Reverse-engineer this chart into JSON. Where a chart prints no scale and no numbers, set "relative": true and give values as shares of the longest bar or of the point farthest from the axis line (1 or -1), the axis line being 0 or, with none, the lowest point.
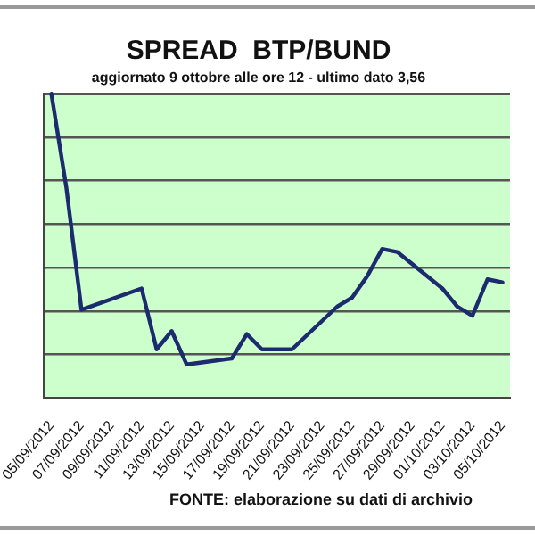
{
  "chart_data": {
    "type": "line",
    "title": "SPREAD  BTP/BUND",
    "subtitle": "aggiornato 9 ottobre alle ore 12 - ultimo dato 3,56",
    "relative": true,
    "grid": "y",
    "legend": false,
    "marker": "none",
    "line_style": "solid",
    "x": [
      "2012-09-05",
      "2012-09-06",
      "2012-09-07",
      "2012-09-11",
      "2012-09-12",
      "2012-09-13",
      "2012-09-14",
      "2012-09-17",
      "2012-09-18",
      "2012-09-19",
      "2012-09-20",
      "2012-09-21",
      "2012-09-24",
      "2012-09-25",
      "2012-09-26",
      "2012-09-27",
      "2012-09-28",
      "2012-10-01",
      "2012-10-02",
      "2012-10-03",
      "2012-10-04",
      "2012-10-05"
    ],
    "xlim": [
      "2012-09-04T12:00",
      "2012-10-05T12:00"
    ],
    "xticks": [
      {
        "value": "2012-09-05",
        "label": "05/09/2012"
      },
      {
        "value": "2012-09-07",
        "label": "07/09/2012"
      },
      {
        "value": "2012-09-09",
        "label": "09/09/2012"
      },
      {
        "value": "2012-09-11",
        "label": "11/09/2012"
      },
      {
        "value": "2012-09-13",
        "label": "13/09/2012"
      },
      {
        "value": "2012-09-15",
        "label": "15/09/2012"
      },
      {
        "value": "2012-09-17",
        "label": "17/09/2012"
      },
      {
        "value": "2012-09-19",
        "label": "19/09/2012"
      },
      {
        "value": "2012-09-21",
        "label": "21/09/2012"
      },
      {
        "value": "2012-09-23",
        "label": "23/09/2012"
      },
      {
        "value": "2012-09-25",
        "label": "25/09/2012"
      },
      {
        "value": "2012-09-27",
        "label": "27/09/2012"
      },
      {
        "value": "2012-09-29",
        "label": "29/09/2012"
      },
      {
        "value": "2012-10-01",
        "label": "01/10/2012"
      },
      {
        "value": "2012-10-03",
        "label": "03/10/2012"
      },
      {
        "value": "2012-10-05",
        "label": "05/10/2012"
      }
    ],
    "series": [
      {
        "color": "#1c2a6e",
        "values": [
          1.0,
          0.69,
          0.29,
          0.36,
          0.16,
          0.22,
          0.11,
          0.13,
          0.21,
          0.16,
          0.16,
          0.16,
          0.3,
          0.33,
          0.4,
          0.49,
          0.48,
          0.36,
          0.3,
          0.27,
          0.39,
          0.38
        ]
      }
    ],
    "annotations": [
      "FONTE: elaborazione su dati di archivio"
    ]
  }
}
